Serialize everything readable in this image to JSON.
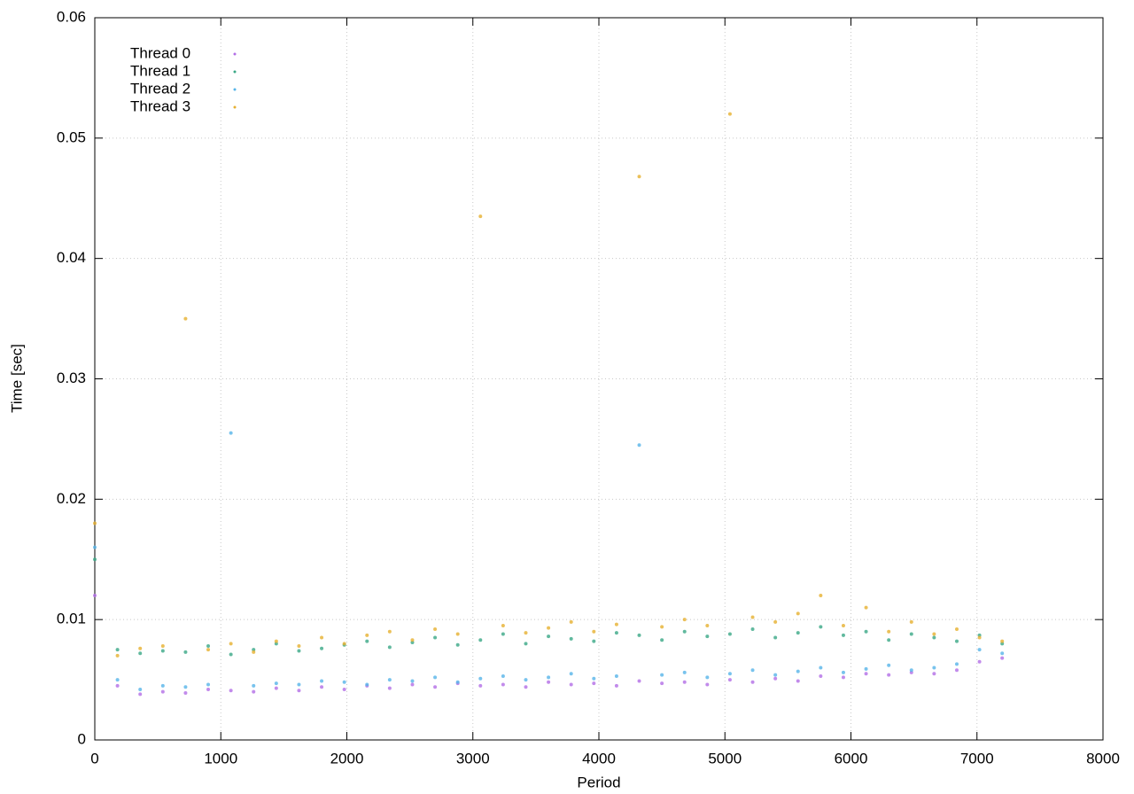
{
  "chart_data": {
    "type": "scatter",
    "xlabel": "Period",
    "ylabel": "Time [sec]",
    "x": [
      0,
      180,
      360,
      540,
      720,
      900,
      1080,
      1260,
      1440,
      1620,
      1800,
      1980,
      2160,
      2340,
      2520,
      2700,
      2880,
      3060,
      3240,
      3420,
      3600,
      3780,
      3960,
      4140,
      4320,
      4500,
      4680,
      4860,
      5040,
      5220,
      5400,
      5580,
      5760,
      5940,
      6120,
      6300,
      6480,
      6660,
      6840,
      7020,
      7200
    ],
    "series": [
      {
        "name": "Thread 0",
        "color": "#b36ee6",
        "values": [
          0.012,
          0.0045,
          0.0038,
          0.004,
          0.0039,
          0.0042,
          0.0041,
          0.004,
          0.0043,
          0.0041,
          0.0044,
          0.0042,
          0.0045,
          0.0043,
          0.0046,
          0.0044,
          0.0047,
          0.0045,
          0.0046,
          0.0044,
          0.0048,
          0.0046,
          0.0047,
          0.0045,
          0.0049,
          0.0047,
          0.0048,
          0.0046,
          0.005,
          0.0048,
          0.0051,
          0.0049,
          0.0053,
          0.0052,
          0.0055,
          0.0054,
          0.0056,
          0.0055,
          0.0058,
          0.0065,
          0.0068
        ]
      },
      {
        "name": "Thread 1",
        "color": "#3aa886",
        "values": [
          0.015,
          0.0075,
          0.0072,
          0.0074,
          0.0073,
          0.0078,
          0.0071,
          0.0075,
          0.008,
          0.0074,
          0.0076,
          0.0079,
          0.0082,
          0.0077,
          0.0081,
          0.0085,
          0.0079,
          0.0083,
          0.0088,
          0.008,
          0.0086,
          0.0084,
          0.0082,
          0.0089,
          0.0087,
          0.0083,
          0.009,
          0.0086,
          0.0088,
          0.0092,
          0.0085,
          0.0089,
          0.0094,
          0.0087,
          0.009,
          0.0083,
          0.0088,
          0.0085,
          0.0082,
          0.0087,
          0.008
        ]
      },
      {
        "name": "Thread 2",
        "color": "#56b4e9",
        "values": [
          0.016,
          0.005,
          0.0042,
          0.0045,
          0.0044,
          0.0046,
          0.0255,
          0.0045,
          0.0047,
          0.0046,
          0.0049,
          0.0048,
          0.0046,
          0.005,
          0.0049,
          0.0052,
          0.0048,
          0.0051,
          0.0053,
          0.005,
          0.0052,
          0.0055,
          0.0051,
          0.0053,
          0.0245,
          0.0054,
          0.0056,
          0.0052,
          0.0055,
          0.0058,
          0.0054,
          0.0057,
          0.006,
          0.0056,
          0.0059,
          0.0062,
          0.0058,
          0.006,
          0.0063,
          0.0075,
          0.0072
        ]
      },
      {
        "name": "Thread 3",
        "color": "#e6b030",
        "values": [
          0.018,
          0.007,
          0.0076,
          0.0078,
          0.035,
          0.0075,
          0.008,
          0.0073,
          0.0082,
          0.0078,
          0.0085,
          0.008,
          0.0087,
          0.009,
          0.0083,
          0.0092,
          0.0088,
          0.0435,
          0.0095,
          0.0089,
          0.0093,
          0.0098,
          0.009,
          0.0096,
          0.0468,
          0.0094,
          0.01,
          0.0095,
          0.052,
          0.0102,
          0.0098,
          0.0105,
          0.012,
          0.0095,
          0.011,
          0.009,
          0.0098,
          0.0088,
          0.0092,
          0.0085,
          0.0082
        ]
      }
    ],
    "xlim": [
      0,
      8000
    ],
    "xticks": [
      0,
      1000,
      2000,
      3000,
      4000,
      5000,
      6000,
      7000,
      8000
    ],
    "ylim": [
      0,
      0.06
    ],
    "yticks": [
      0,
      0.01,
      0.02,
      0.03,
      0.04,
      0.05,
      0.06
    ],
    "grid": true,
    "legend": "upper-left"
  }
}
